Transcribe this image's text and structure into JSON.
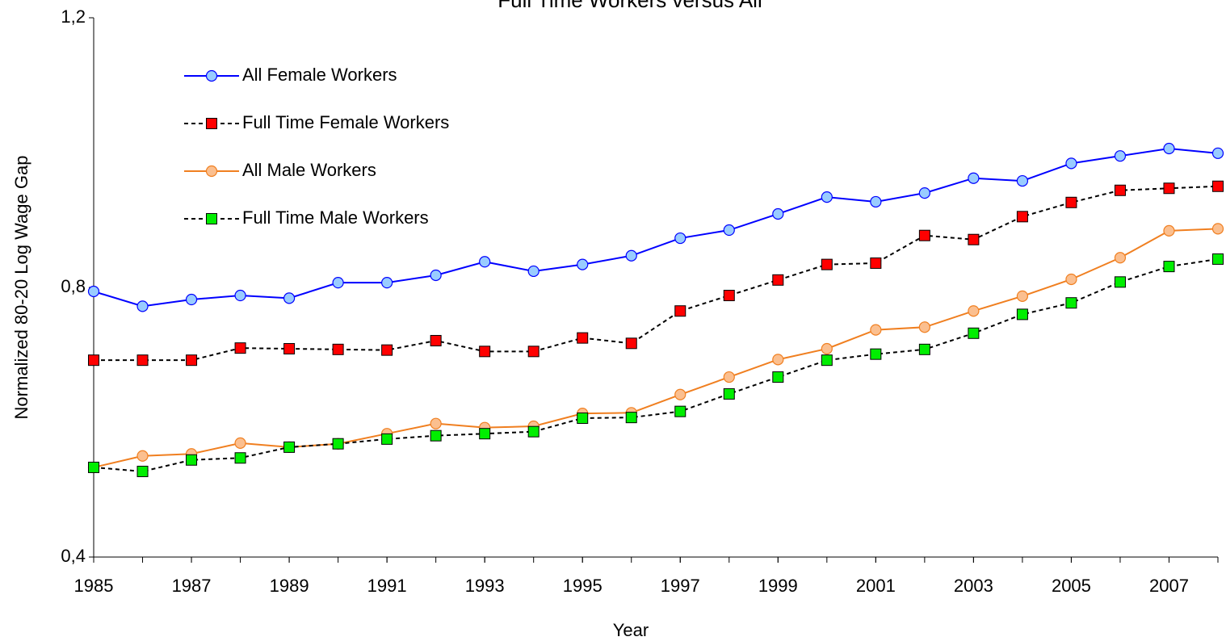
{
  "chart_data": {
    "type": "line",
    "title": "Full Time Workers versus All",
    "x_label": "Year",
    "y_label": "Normalized 80-20 Log Wage Gap",
    "x": [
      1985,
      1986,
      1987,
      1988,
      1989,
      1990,
      1991,
      1992,
      1993,
      1994,
      1995,
      1996,
      1997,
      1998,
      1999,
      2000,
      2001,
      2002,
      2003,
      2004,
      2005,
      2006,
      2007,
      2008
    ],
    "xlim": [
      1985,
      2008
    ],
    "xticks": [
      1985,
      1987,
      1989,
      1991,
      1993,
      1995,
      1997,
      1999,
      2001,
      2003,
      2005,
      2007
    ],
    "ylim": [
      0.4,
      1.2
    ],
    "yticks": [
      {
        "value": 0.4,
        "label": "0,4"
      },
      {
        "value": 0.8,
        "label": "0,8"
      },
      {
        "value": 1.2,
        "label": "1,2"
      }
    ],
    "grid": false,
    "legend": "upper left",
    "series": [
      {
        "name": "All Female Workers",
        "line_color": "#0000ff",
        "color": "#99ccff",
        "marker": "circle",
        "dashed": false,
        "values": [
          0.794,
          0.772,
          0.782,
          0.788,
          0.784,
          0.807,
          0.807,
          0.818,
          0.838,
          0.824,
          0.834,
          0.847,
          0.873,
          0.885,
          0.909,
          0.934,
          0.927,
          0.94,
          0.962,
          0.958,
          0.984,
          0.995,
          1.006,
          0.999
        ]
      },
      {
        "name": "Full Time Female Workers",
        "line_color": "#000000",
        "color": "#ff0000",
        "marker": "square",
        "dashed": true,
        "values": [
          0.692,
          0.692,
          0.692,
          0.71,
          0.709,
          0.708,
          0.707,
          0.721,
          0.705,
          0.705,
          0.725,
          0.717,
          0.765,
          0.788,
          0.811,
          0.834,
          0.836,
          0.877,
          0.871,
          0.905,
          0.926,
          0.944,
          0.947,
          0.95
        ]
      },
      {
        "name": "All Male Workers",
        "line_color": "#f07f20",
        "color": "#fbbf8f",
        "marker": "circle",
        "dashed": false,
        "values": [
          0.533,
          0.55,
          0.553,
          0.569,
          0.563,
          0.568,
          0.583,
          0.598,
          0.592,
          0.594,
          0.613,
          0.614,
          0.641,
          0.667,
          0.693,
          0.709,
          0.737,
          0.741,
          0.765,
          0.787,
          0.812,
          0.844,
          0.884,
          0.887
        ]
      },
      {
        "name": "Full Time Male Workers",
        "line_color": "#000000",
        "color": "#00ee00",
        "marker": "square",
        "dashed": true,
        "values": [
          0.533,
          0.527,
          0.544,
          0.547,
          0.563,
          0.568,
          0.575,
          0.58,
          0.583,
          0.586,
          0.606,
          0.607,
          0.616,
          0.642,
          0.667,
          0.692,
          0.701,
          0.708,
          0.732,
          0.76,
          0.777,
          0.808,
          0.831,
          0.842
        ]
      }
    ]
  }
}
